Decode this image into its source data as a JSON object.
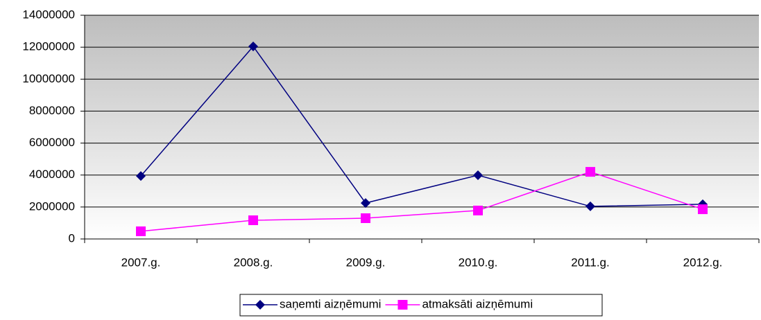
{
  "chart_data": {
    "type": "line",
    "categories": [
      "2007.g.",
      "2008.g.",
      "2009.g.",
      "2010.g.",
      "2011.g.",
      "2012.g."
    ],
    "series": [
      {
        "name": "saņemti aizņēmumi",
        "color": "#000080",
        "marker": "diamond",
        "values": [
          3940000,
          12050000,
          2250000,
          3990000,
          2040000,
          2170000
        ]
      },
      {
        "name": "atmaksāti aizņēmumi",
        "color": "#ff00ff",
        "marker": "square",
        "values": [
          480000,
          1170000,
          1300000,
          1780000,
          4200000,
          1860000
        ]
      }
    ],
    "ylim": [
      0,
      14000000
    ],
    "yticks": [
      0,
      2000000,
      4000000,
      6000000,
      8000000,
      10000000,
      12000000,
      14000000
    ],
    "grid": true,
    "legend": "bottom"
  }
}
